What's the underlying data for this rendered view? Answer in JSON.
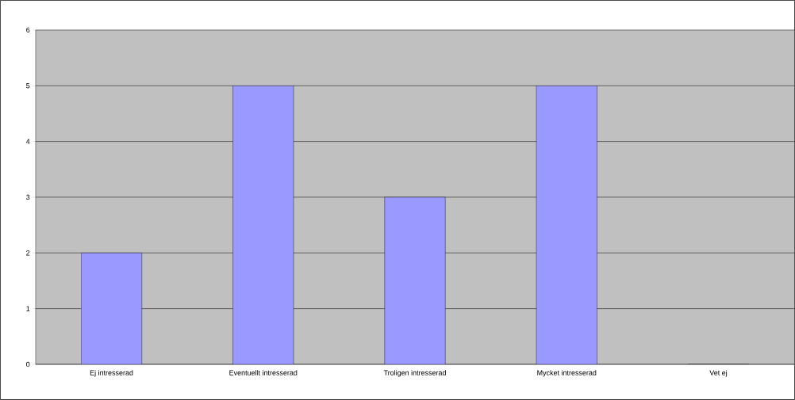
{
  "chart_data": {
    "type": "bar",
    "categories": [
      "Ej intresserad",
      "Eventuellt intresserad",
      "Troligen intresserad",
      "Mycket intresserad",
      "Vet ej"
    ],
    "values": [
      2,
      5,
      3,
      5,
      0
    ],
    "color": "#9999ff",
    "ylim": [
      0,
      6
    ],
    "yticks": [
      0,
      1,
      2,
      3,
      4,
      5,
      6
    ],
    "grid": "y"
  }
}
